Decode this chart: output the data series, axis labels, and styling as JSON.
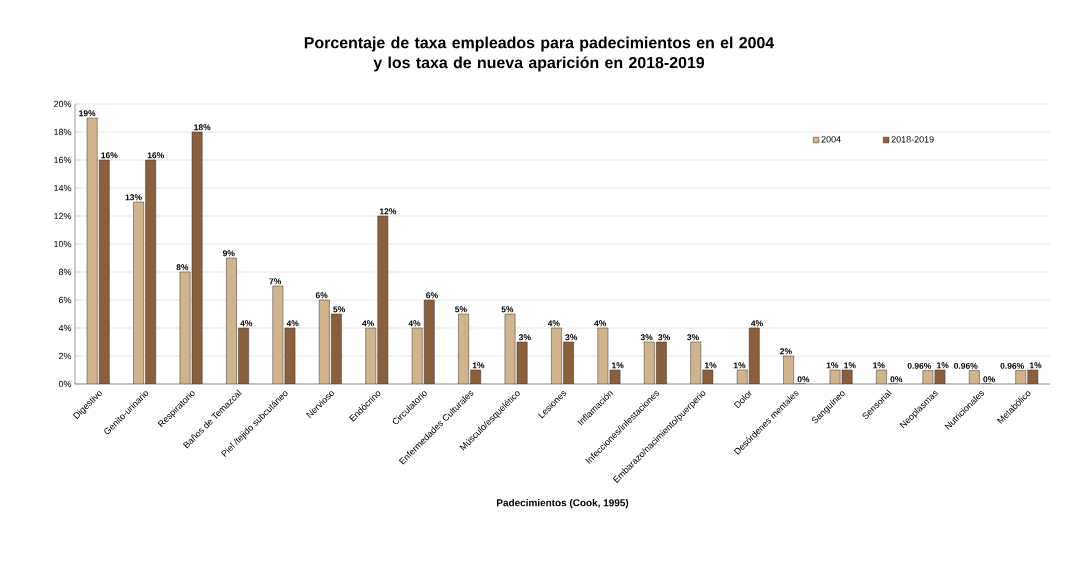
{
  "chart_data": {
    "type": "bar",
    "title": "Porcentaje de taxa empleados para padecimientos en el 2004\ny los taxa de nueva aparición en 2018-2019",
    "xlabel": "Padecimientos (Cook, 1995)",
    "categories": [
      "Digestivo",
      "Genito-urinario",
      "Respiratorio",
      "Baños de Temazcal",
      "Piel /tejido subcutáneo",
      "Nervioso",
      "Endócrino",
      "Circulatorio",
      "Enfermedades Culturales",
      "Músculo/esquelético",
      "Lesiones",
      "Inflamación",
      "Infecciones/infestaciones",
      "Embarazo/nacimiento/puerperio",
      "Dolor",
      "Desórdenes mentales",
      "Sanguíneo",
      "Sensorial",
      "Neoplasmas",
      "Nutricionales",
      "Metabólico"
    ],
    "series": [
      {
        "name": "2004",
        "color": "#d2b48c",
        "values": [
          19,
          13,
          8,
          9,
          7,
          6,
          4,
          4,
          5,
          5,
          4,
          4,
          3,
          3,
          1,
          2,
          1,
          1,
          0.96,
          0.96,
          0.96
        ],
        "value_labels": [
          "19%",
          "13%",
          "8%",
          "9%",
          "7%",
          "6%",
          "4%",
          "4%",
          "5%",
          "5%",
          "4%",
          "4%",
          "3%",
          "3%",
          "1%",
          "2%",
          "1%",
          "1%",
          "0.96%",
          "0.96%",
          "0.96%"
        ]
      },
      {
        "name": "2018-2019",
        "color": "#8b5e3c",
        "values": [
          16,
          16,
          18,
          4,
          4,
          5,
          12,
          6,
          1,
          3,
          3,
          1,
          3,
          1,
          4,
          0,
          1,
          0,
          1,
          0,
          1
        ],
        "value_labels": [
          "16%",
          "16%",
          "18%",
          "4%",
          "4%",
          "5%",
          "12%",
          "6%",
          "1%",
          "3%",
          "3%",
          "1%",
          "3%",
          "1%",
          "4%",
          "0%",
          "1%",
          "0%",
          "1%",
          "0%",
          "1%"
        ]
      }
    ],
    "ylim": [
      0,
      20
    ],
    "yticks": [
      {
        "value": 0,
        "label": "0%"
      },
      {
        "value": 2,
        "label": "2%"
      },
      {
        "value": 4,
        "label": "4%"
      },
      {
        "value": 6,
        "label": "6%"
      },
      {
        "value": 8,
        "label": "8%"
      },
      {
        "value": 10,
        "label": "10%"
      },
      {
        "value": 12,
        "label": "12%"
      },
      {
        "value": 14,
        "label": "14%"
      },
      {
        "value": 16,
        "label": "16%"
      },
      {
        "value": 18,
        "label": "18%"
      },
      {
        "value": 20,
        "label": "20%"
      }
    ],
    "grid": "y",
    "legend": "top right"
  }
}
